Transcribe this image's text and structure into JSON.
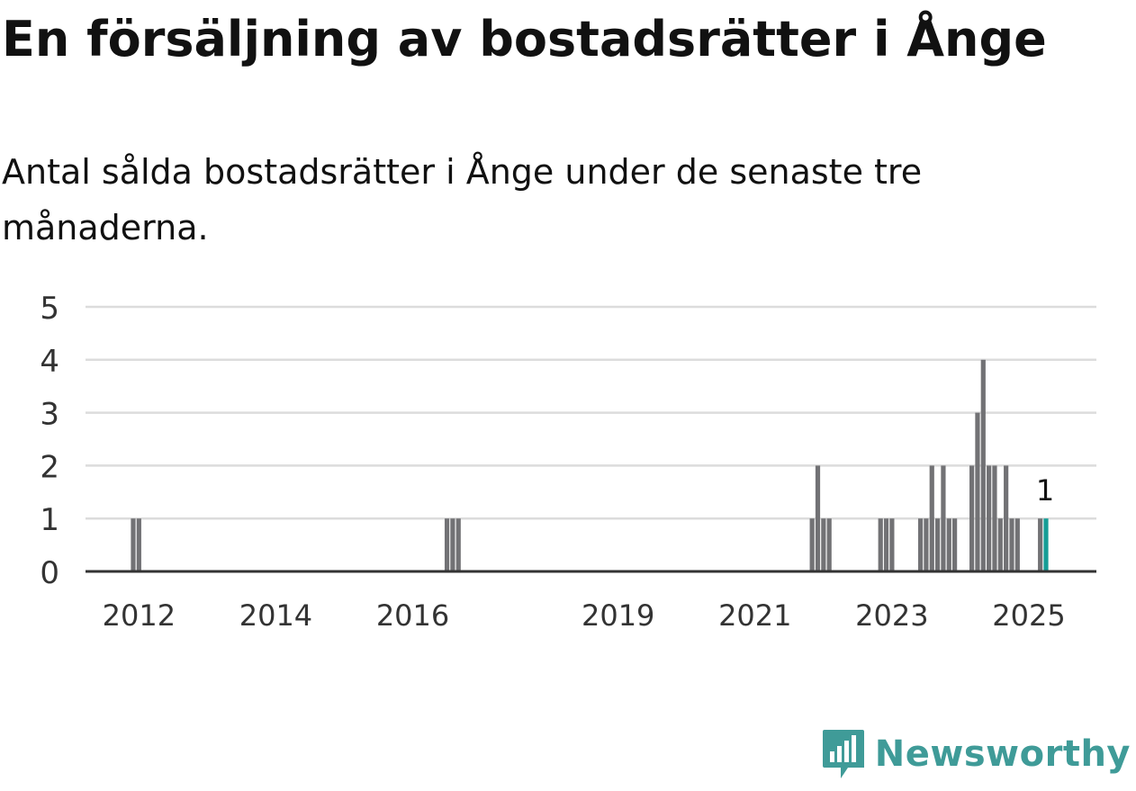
{
  "header": {
    "title": "En försäljning av bostadsrätter i Ånge",
    "subtitle": "Antal sålda bostadsrätter i Ånge under de senaste tre månaderna."
  },
  "brand": {
    "name": "Newsworthy",
    "icon": "newsworthy-logo-icon",
    "color": "#3f9b98"
  },
  "colors": {
    "bar": "#727275",
    "highlight": "#169d96",
    "grid": "#dcdcdc",
    "axis": "#333333",
    "tick_text": "#333333"
  },
  "chart_data": {
    "type": "bar",
    "title": "En försäljning av bostadsrätter i Ånge",
    "subtitle": "Antal sålda bostadsrätter i Ånge under de senaste tre månaderna.",
    "xlabel": "",
    "ylabel": "",
    "ylim": [
      0,
      5
    ],
    "yticks": [
      0,
      1,
      2,
      3,
      4,
      5
    ],
    "xticks": [
      "2012",
      "2014",
      "2016",
      "2019",
      "2021",
      "2023",
      "2025"
    ],
    "x": [
      "2011-12",
      "2012-01",
      "2016-07",
      "2016-08",
      "2016-09",
      "2021-11",
      "2021-12",
      "2022-01",
      "2022-02",
      "2022-11",
      "2022-12",
      "2023-01",
      "2023-06",
      "2023-07",
      "2023-08",
      "2023-09",
      "2023-10",
      "2023-11",
      "2023-12",
      "2024-03",
      "2024-04",
      "2024-05",
      "2024-06",
      "2024-07",
      "2024-08",
      "2024-09",
      "2024-10",
      "2024-11",
      "2024-12",
      "2025-03",
      "2025-04"
    ],
    "values": [
      1,
      1,
      1,
      1,
      1,
      1,
      2,
      1,
      1,
      1,
      1,
      1,
      1,
      1,
      2,
      1,
      2,
      1,
      1,
      2,
      3,
      4,
      2,
      2,
      1,
      2,
      1,
      1,
      0,
      1,
      1
    ],
    "highlight": "2025-04",
    "annotation": {
      "x": "2025-04",
      "text": "1"
    },
    "grid": true,
    "legend": "none"
  }
}
